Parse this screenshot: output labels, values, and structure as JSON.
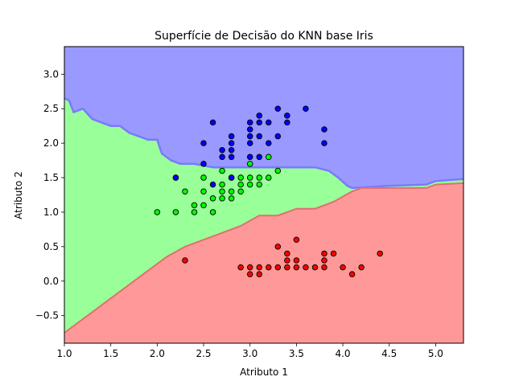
{
  "chart_data": {
    "type": "scatter",
    "title": "Superfície de Decisão do KNN base Iris",
    "xlabel": "Atributo 1",
    "ylabel": "Atributo 2",
    "xlim": [
      1.0,
      5.3
    ],
    "ylim": [
      -0.9,
      3.4
    ],
    "xticks": [
      1.0,
      1.5,
      2.0,
      2.5,
      3.0,
      3.5,
      4.0,
      4.5,
      5.0
    ],
    "yticks": [
      -0.5,
      0.0,
      0.5,
      1.0,
      1.5,
      2.0,
      2.5,
      3.0
    ],
    "xtick_labels": [
      "1.0",
      "1.5",
      "2.0",
      "2.5",
      "3.0",
      "3.5",
      "4.0",
      "4.5",
      "5.0"
    ],
    "ytick_labels": [
      "−0.5",
      "0.0",
      "0.5",
      "1.0",
      "1.5",
      "2.0",
      "2.5",
      "3.0"
    ],
    "grid": false,
    "legend": "none",
    "colors": {
      "region_red": "#ff9999",
      "region_green": "#99ff99",
      "region_blue": "#9999ff",
      "point_red": "#ff0000",
      "point_green": "#00ff00",
      "point_blue": "#0000ff",
      "boundary": "#7a7aff"
    },
    "regions": [
      {
        "class": "blue",
        "boundary_below": [
          [
            1.0,
            2.65
          ],
          [
            1.05,
            2.62
          ],
          [
            1.1,
            2.45
          ],
          [
            1.2,
            2.5
          ],
          [
            1.3,
            2.35
          ],
          [
            1.4,
            2.3
          ],
          [
            1.5,
            2.25
          ],
          [
            1.6,
            2.25
          ],
          [
            1.7,
            2.15
          ],
          [
            1.8,
            2.1
          ],
          [
            1.9,
            2.05
          ],
          [
            2.0,
            2.05
          ],
          [
            2.05,
            1.85
          ],
          [
            2.15,
            1.75
          ],
          [
            2.25,
            1.7
          ],
          [
            2.4,
            1.7
          ],
          [
            2.6,
            1.65
          ],
          [
            2.8,
            1.65
          ],
          [
            3.0,
            1.65
          ],
          [
            3.5,
            1.65
          ],
          [
            3.7,
            1.65
          ],
          [
            3.85,
            1.6
          ],
          [
            3.95,
            1.5
          ],
          [
            4.05,
            1.38
          ],
          [
            4.1,
            1.35
          ],
          [
            4.5,
            1.38
          ],
          [
            4.9,
            1.4
          ],
          [
            5.0,
            1.45
          ],
          [
            5.3,
            1.48
          ]
        ]
      },
      {
        "class": "red",
        "boundary_above": [
          [
            1.0,
            -0.75
          ],
          [
            1.1,
            -0.65
          ],
          [
            1.3,
            -0.45
          ],
          [
            1.5,
            -0.25
          ],
          [
            1.7,
            -0.05
          ],
          [
            1.9,
            0.15
          ],
          [
            2.1,
            0.35
          ],
          [
            2.3,
            0.5
          ],
          [
            2.5,
            0.6
          ],
          [
            2.7,
            0.7
          ],
          [
            2.9,
            0.8
          ],
          [
            3.1,
            0.95
          ],
          [
            3.3,
            0.95
          ],
          [
            3.5,
            1.05
          ],
          [
            3.7,
            1.05
          ],
          [
            3.9,
            1.15
          ],
          [
            4.1,
            1.3
          ],
          [
            4.2,
            1.35
          ],
          [
            4.5,
            1.35
          ],
          [
            4.9,
            1.35
          ],
          [
            5.0,
            1.4
          ],
          [
            5.3,
            1.42
          ]
        ]
      }
    ],
    "series": [
      {
        "class": "red",
        "points": [
          [
            2.3,
            0.3
          ],
          [
            2.9,
            0.2
          ],
          [
            3.0,
            0.2
          ],
          [
            3.0,
            0.1
          ],
          [
            3.1,
            0.2
          ],
          [
            3.1,
            0.1
          ],
          [
            3.2,
            0.2
          ],
          [
            3.3,
            0.2
          ],
          [
            3.3,
            0.5
          ],
          [
            3.4,
            0.2
          ],
          [
            3.4,
            0.3
          ],
          [
            3.4,
            0.4
          ],
          [
            3.5,
            0.2
          ],
          [
            3.5,
            0.3
          ],
          [
            3.5,
            0.6
          ],
          [
            3.6,
            0.2
          ],
          [
            3.7,
            0.2
          ],
          [
            3.8,
            0.2
          ],
          [
            3.8,
            0.3
          ],
          [
            3.8,
            0.4
          ],
          [
            3.9,
            0.4
          ],
          [
            4.0,
            0.2
          ],
          [
            4.1,
            0.1
          ],
          [
            4.2,
            0.2
          ],
          [
            4.4,
            0.4
          ]
        ]
      },
      {
        "class": "green",
        "points": [
          [
            2.0,
            1.0
          ],
          [
            2.2,
            1.0
          ],
          [
            2.2,
            1.5
          ],
          [
            2.3,
            1.3
          ],
          [
            2.4,
            1.0
          ],
          [
            2.4,
            1.1
          ],
          [
            2.5,
            1.1
          ],
          [
            2.5,
            1.3
          ],
          [
            2.5,
            1.5
          ],
          [
            2.6,
            1.0
          ],
          [
            2.6,
            1.2
          ],
          [
            2.7,
            1.2
          ],
          [
            2.7,
            1.3
          ],
          [
            2.7,
            1.4
          ],
          [
            2.7,
            1.6
          ],
          [
            2.8,
            1.2
          ],
          [
            2.8,
            1.3
          ],
          [
            2.8,
            1.5
          ],
          [
            2.9,
            1.3
          ],
          [
            2.9,
            1.4
          ],
          [
            2.9,
            1.5
          ],
          [
            3.0,
            1.4
          ],
          [
            3.0,
            1.5
          ],
          [
            3.0,
            1.7
          ],
          [
            3.1,
            1.4
          ],
          [
            3.1,
            1.5
          ],
          [
            3.2,
            1.5
          ],
          [
            3.2,
            1.8
          ],
          [
            3.3,
            1.6
          ]
        ]
      },
      {
        "class": "blue",
        "points": [
          [
            2.2,
            1.5
          ],
          [
            2.5,
            1.7
          ],
          [
            2.5,
            2.0
          ],
          [
            2.6,
            1.4
          ],
          [
            2.6,
            2.3
          ],
          [
            2.7,
            1.8
          ],
          [
            2.7,
            1.9
          ],
          [
            2.8,
            1.5
          ],
          [
            2.8,
            1.8
          ],
          [
            2.8,
            1.9
          ],
          [
            2.8,
            2.0
          ],
          [
            2.8,
            2.1
          ],
          [
            3.0,
            1.8
          ],
          [
            3.0,
            2.0
          ],
          [
            3.0,
            2.1
          ],
          [
            3.0,
            2.2
          ],
          [
            3.0,
            2.3
          ],
          [
            3.1,
            1.8
          ],
          [
            3.1,
            2.1
          ],
          [
            3.1,
            2.3
          ],
          [
            3.1,
            2.4
          ],
          [
            3.2,
            2.0
          ],
          [
            3.2,
            2.3
          ],
          [
            3.3,
            2.1
          ],
          [
            3.3,
            2.5
          ],
          [
            3.4,
            2.3
          ],
          [
            3.4,
            2.4
          ],
          [
            3.6,
            2.5
          ],
          [
            3.8,
            2.0
          ],
          [
            3.8,
            2.2
          ]
        ]
      }
    ]
  }
}
